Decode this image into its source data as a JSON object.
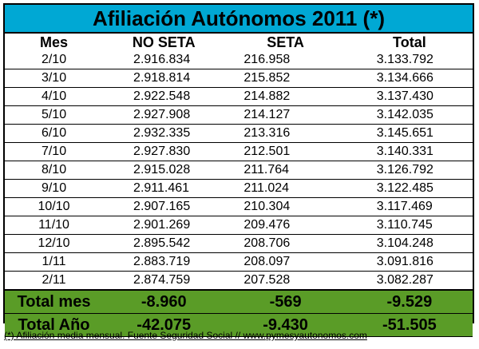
{
  "title": "Afiliación Autónomos 2011 (*)",
  "headers": [
    "Mes",
    "NO SETA",
    "SETA",
    "Total"
  ],
  "rows": [
    {
      "mes": "2/10",
      "noseta": "2.916.834",
      "seta": "216.958",
      "total": "3.133.792"
    },
    {
      "mes": "3/10",
      "noseta": "2.918.814",
      "seta": "215.852",
      "total": "3.134.666"
    },
    {
      "mes": "4/10",
      "noseta": "2.922.548",
      "seta": "214.882",
      "total": "3.137.430"
    },
    {
      "mes": "5/10",
      "noseta": "2.927.908",
      "seta": "214.127",
      "total": "3.142.035"
    },
    {
      "mes": "6/10",
      "noseta": "2.932.335",
      "seta": "213.316",
      "total": "3.145.651"
    },
    {
      "mes": "7/10",
      "noseta": "2.927.830",
      "seta": "212.501",
      "total": "3.140.331"
    },
    {
      "mes": "8/10",
      "noseta": "2.915.028",
      "seta": "211.764",
      "total": "3.126.792"
    },
    {
      "mes": "9/10",
      "noseta": "2.911.461",
      "seta": "211.024",
      "total": "3.122.485"
    },
    {
      "mes": "10/10",
      "noseta": "2.907.165",
      "seta": "210.304",
      "total": "3.117.469"
    },
    {
      "mes": "11/10",
      "noseta": "2.901.269",
      "seta": "209.476",
      "total": "3.110.745"
    },
    {
      "mes": "12/10",
      "noseta": "2.895.542",
      "seta": "208.706",
      "total": "3.104.248"
    },
    {
      "mes": "1/11",
      "noseta": "2.883.719",
      "seta": "208.097",
      "total": "3.091.816"
    },
    {
      "mes": "2/11",
      "noseta": "2.874.759",
      "seta": "207.528",
      "total": "3.082.287"
    }
  ],
  "summary": [
    {
      "label": "Total mes",
      "noseta": "-8.960",
      "seta": "-569",
      "total": "-9.529"
    },
    {
      "label": "Total Año",
      "noseta": "-42.075",
      "seta": "-9.430",
      "total": "-51.505"
    }
  ],
  "footnote": "(*) Afiliación media mensual. Fuente Seguridad Social // www.pymesyautonomos.com",
  "colors": {
    "title_bg": "#00a8d4",
    "summary_bg": "#5a9c27"
  }
}
